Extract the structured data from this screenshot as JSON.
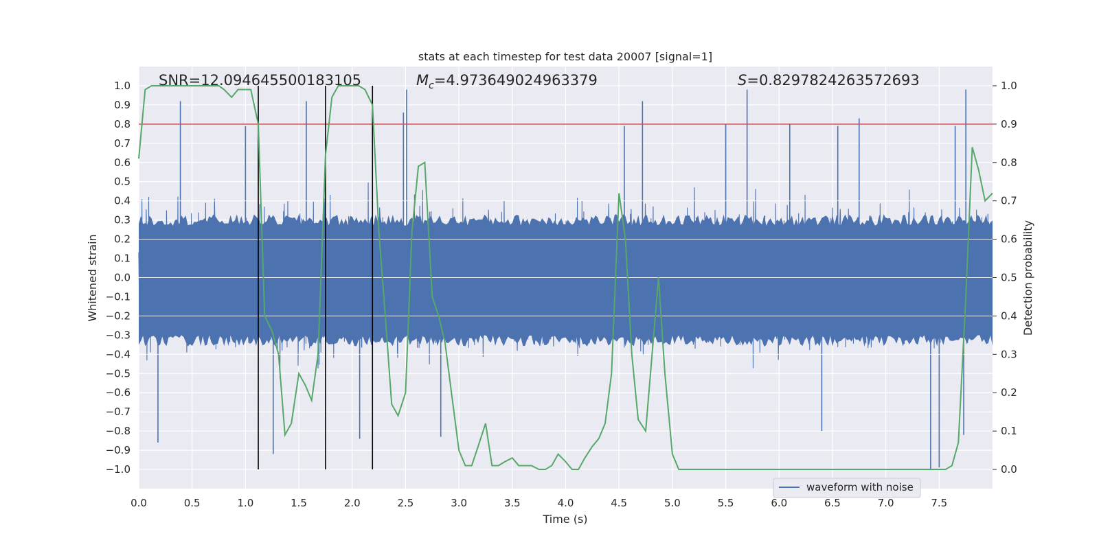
{
  "chart_data": {
    "type": "line",
    "title": "stats at each timestep for test data 20007 [signal=1]",
    "xlabel": "Time (s)",
    "ylabel_left": "Whitened strain",
    "ylabel_right": "Detection probability",
    "xlim": [
      0,
      8
    ],
    "ylim_left": [
      -1.1,
      1.1
    ],
    "ylim_right": [
      -0.05,
      1.05
    ],
    "xticks": [
      "0.0",
      "0.5",
      "1.0",
      "1.5",
      "2.0",
      "2.5",
      "3.0",
      "3.5",
      "4.0",
      "4.5",
      "5.0",
      "5.5",
      "6.0",
      "6.5",
      "7.0",
      "7.5"
    ],
    "xtick_values": [
      0,
      0.5,
      1,
      1.5,
      2,
      2.5,
      3,
      3.5,
      4,
      4.5,
      5,
      5.5,
      6,
      6.5,
      7,
      7.5
    ],
    "yticks_left": [
      "1.0",
      "0.9",
      "0.8",
      "0.7",
      "0.6",
      "0.5",
      "0.4",
      "0.3",
      "0.2",
      "0.1",
      "0.0",
      "−0.1",
      "−0.2",
      "−0.3",
      "−0.4",
      "−0.5",
      "−0.6",
      "−0.7",
      "−0.8",
      "−0.9",
      "−1.0"
    ],
    "ytick_values_left": [
      1.0,
      0.9,
      0.8,
      0.7,
      0.6,
      0.5,
      0.4,
      0.3,
      0.2,
      0.1,
      0.0,
      -0.1,
      -0.2,
      -0.3,
      -0.4,
      -0.5,
      -0.6,
      -0.7,
      -0.8,
      -0.9,
      -1.0
    ],
    "yticks_right": [
      "1.0",
      "0.9",
      "0.8",
      "0.7",
      "0.6",
      "0.5",
      "0.4",
      "0.3",
      "0.2",
      "0.1",
      "0.0"
    ],
    "ytick_values_right": [
      1.0,
      0.9,
      0.8,
      0.7,
      0.6,
      0.5,
      0.4,
      0.3,
      0.2,
      0.1,
      0.0
    ],
    "annotations": {
      "snr": "SNR=12.094645500183105",
      "mc_symbol": "M",
      "mc_subscript": "c",
      "mc_value": "=4.973649024963379",
      "s_symbol": "S",
      "s_value": "=0.8297824263572693"
    },
    "threshold": {
      "value": 0.9,
      "axis": "right",
      "color": "#c44e52"
    },
    "vertical_lines": [
      1.12,
      1.75,
      2.19
    ],
    "legend": {
      "label": "waveform with noise",
      "location": "lower-right"
    },
    "series": [
      {
        "name": "waveform with noise",
        "axis": "left",
        "color": "#4c72b0",
        "sample_rate": 2048,
        "duration_s": 8,
        "envelope_peak": 0.55,
        "peaks": [
          {
            "x": 0.39,
            "y": 0.92
          },
          {
            "x": 1.0,
            "y": 0.79
          },
          {
            "x": 1.57,
            "y": 0.92
          },
          {
            "x": 2.48,
            "y": 0.86
          },
          {
            "x": 2.51,
            "y": 0.98
          },
          {
            "x": 4.72,
            "y": 0.92
          },
          {
            "x": 4.55,
            "y": 0.79
          },
          {
            "x": 5.7,
            "y": 0.98
          },
          {
            "x": 5.5,
            "y": 0.8
          },
          {
            "x": 6.1,
            "y": 0.8
          },
          {
            "x": 6.55,
            "y": 0.79
          },
          {
            "x": 6.75,
            "y": 0.83
          },
          {
            "x": 7.65,
            "y": 0.79
          },
          {
            "x": 7.75,
            "y": 0.98
          }
        ],
        "troughs": [
          {
            "x": 0.18,
            "y": -0.86
          },
          {
            "x": 1.26,
            "y": -0.92
          },
          {
            "x": 2.07,
            "y": -0.84
          },
          {
            "x": 2.83,
            "y": -0.83
          },
          {
            "x": 6.4,
            "y": -0.8
          },
          {
            "x": 7.5,
            "y": -0.99
          },
          {
            "x": 7.42,
            "y": -1.0
          },
          {
            "x": 7.73,
            "y": -0.82
          }
        ]
      },
      {
        "name": "Detection probability",
        "axis": "right",
        "color": "#55a868",
        "x": [
          0,
          0.06,
          0.12,
          0.25,
          0.5,
          0.75,
          0.8,
          0.87,
          0.93,
          0.98,
          1.05,
          1.12,
          1.18,
          1.25,
          1.31,
          1.37,
          1.43,
          1.5,
          1.56,
          1.62,
          1.68,
          1.75,
          1.81,
          1.87,
          1.93,
          2.0,
          2.06,
          2.12,
          2.19,
          2.25,
          2.31,
          2.37,
          2.43,
          2.5,
          2.56,
          2.62,
          2.68,
          2.75,
          2.81,
          2.87,
          2.93,
          3.0,
          3.06,
          3.12,
          3.18,
          3.25,
          3.31,
          3.37,
          3.43,
          3.5,
          3.56,
          3.62,
          3.68,
          3.75,
          3.81,
          3.87,
          3.93,
          4.0,
          4.06,
          4.12,
          4.18,
          4.25,
          4.31,
          4.37,
          4.43,
          4.5,
          4.56,
          4.62,
          4.68,
          4.75,
          4.81,
          4.87,
          4.93,
          5.0,
          5.06,
          5.12,
          5.18,
          5.25,
          5.5,
          6.0,
          6.25,
          6.5,
          7.0,
          7.1,
          7.25,
          7.3,
          7.4,
          7.5,
          7.56,
          7.62,
          7.68,
          7.75,
          7.81,
          7.87,
          7.93,
          8.0
        ],
        "y": [
          0.81,
          0.99,
          1.0,
          1.0,
          1.0,
          1.0,
          0.99,
          0.97,
          0.99,
          0.99,
          0.99,
          0.9,
          0.4,
          0.36,
          0.3,
          0.09,
          0.12,
          0.25,
          0.22,
          0.18,
          0.3,
          0.82,
          0.97,
          1.0,
          1.0,
          1.0,
          1.0,
          0.99,
          0.95,
          0.62,
          0.4,
          0.17,
          0.14,
          0.2,
          0.62,
          0.79,
          0.8,
          0.45,
          0.4,
          0.33,
          0.2,
          0.05,
          0.01,
          0.01,
          0.06,
          0.12,
          0.01,
          0.01,
          0.02,
          0.03,
          0.01,
          0.01,
          0.01,
          0.0,
          0.0,
          0.01,
          0.04,
          0.02,
          0.0,
          0.0,
          0.03,
          0.06,
          0.08,
          0.12,
          0.25,
          0.72,
          0.6,
          0.3,
          0.13,
          0.1,
          0.3,
          0.5,
          0.25,
          0.04,
          0.0,
          0.0,
          0.0,
          0.0,
          0.0,
          0.0,
          0.0,
          0.0,
          0.0,
          0.0,
          0.0,
          0.0,
          0.0,
          0.0,
          0.0,
          0.01,
          0.07,
          0.45,
          0.84,
          0.78,
          0.7,
          0.72
        ]
      }
    ]
  }
}
